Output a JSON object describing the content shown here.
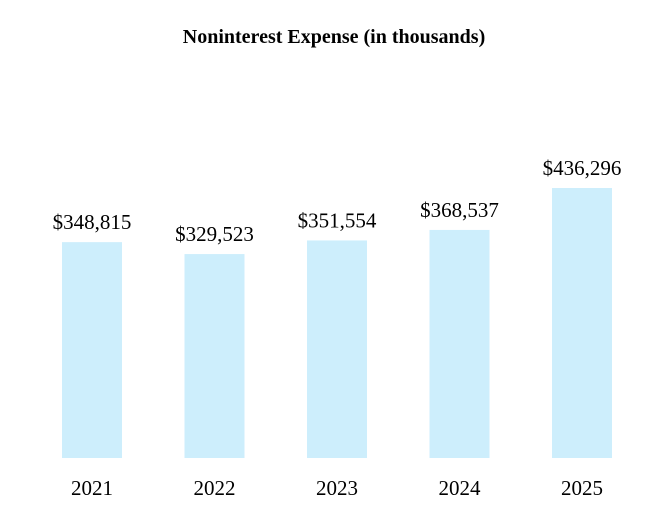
{
  "chart_data": {
    "type": "bar",
    "title": "Noninterest Expense (in thousands)",
    "categories": [
      "2021",
      "2022",
      "2023",
      "2024",
      "2025"
    ],
    "values": [
      348815,
      329523,
      351554,
      368537,
      436296
    ],
    "data_labels": [
      "$348,815",
      "$329,523",
      "$351,554",
      "$368,537",
      "$436,296"
    ],
    "xlabel": "",
    "ylabel": "",
    "ylim": [
      0,
      436296
    ],
    "grid": false,
    "legend": "none",
    "bar_color": "#cdeefc"
  }
}
